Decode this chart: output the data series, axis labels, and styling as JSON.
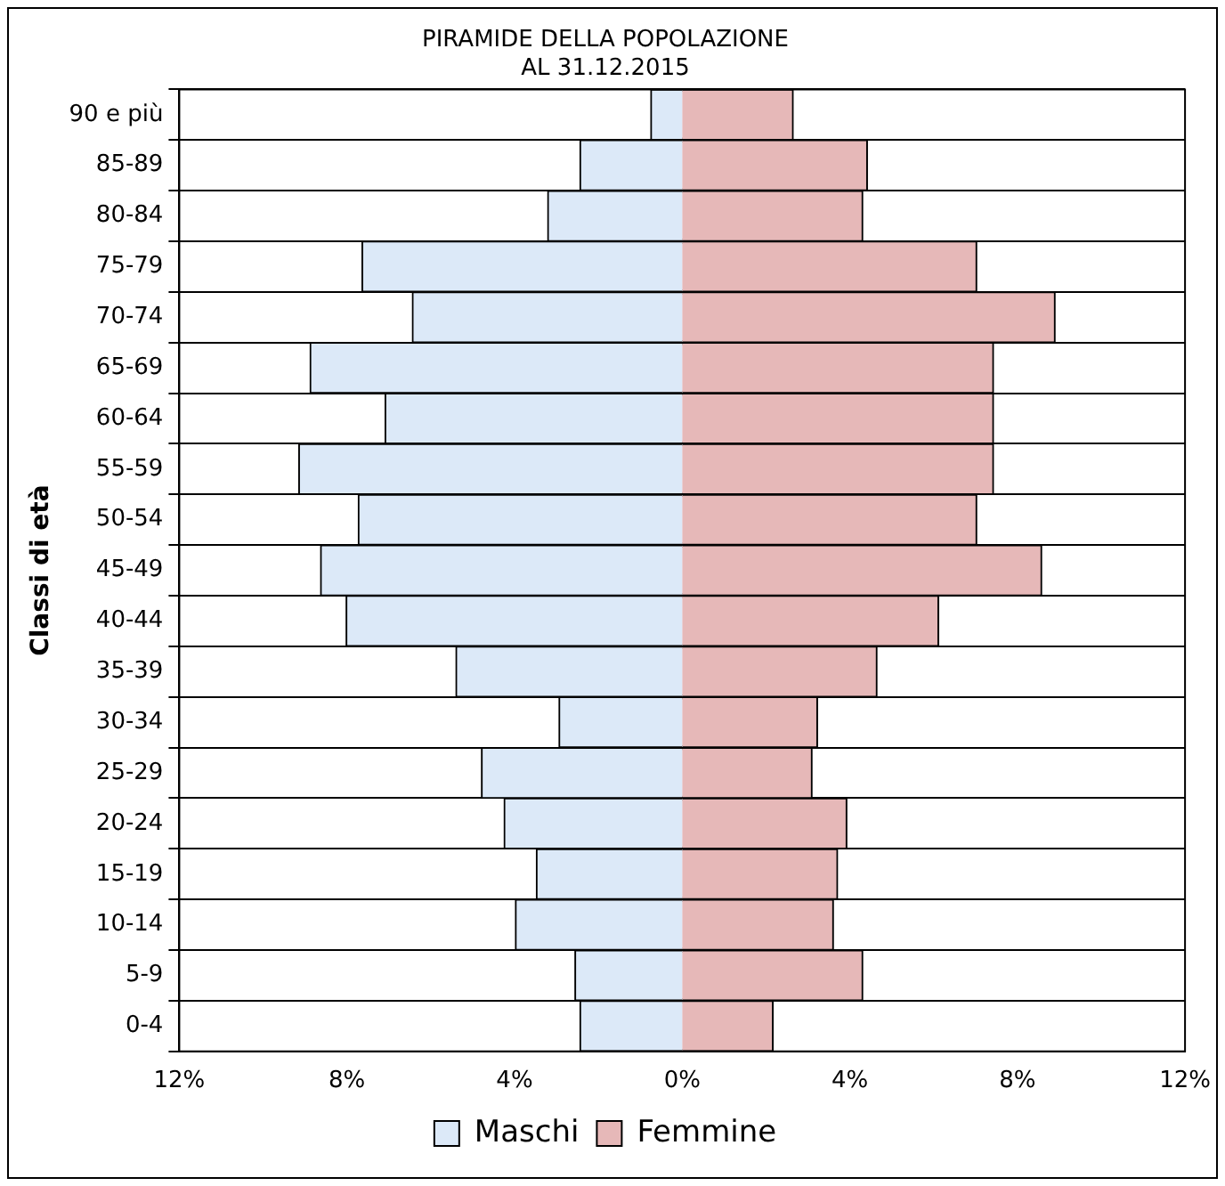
{
  "chart_data": {
    "type": "bar",
    "orientation": "horizontal",
    "stacked": true,
    "title": "PIRAMIDE DELLA POPOLAZIONE\nAL 31.12.2015",
    "ylabel": "Classi di età",
    "categories": [
      "90 e più",
      "85-89",
      "80-84",
      "75-79",
      "70-74",
      "65-69",
      "60-64",
      "55-59",
      "50-54",
      "45-49",
      "40-44",
      "35-39",
      "30-34",
      "25-29",
      "20-24",
      "15-19",
      "10-14",
      "5-9",
      "0-4"
    ],
    "series": [
      {
        "name": "Maschi",
        "color": "#dce9f8",
        "values": [
          -0.75,
          -2.44,
          -3.21,
          -7.64,
          -6.44,
          -8.88,
          -7.09,
          -9.15,
          -7.73,
          -8.63,
          -8.02,
          -5.4,
          -2.94,
          -4.79,
          -4.25,
          -3.48,
          -3.98,
          -2.56,
          -2.44
        ]
      },
      {
        "name": "Femmine",
        "color": "#e6b8b8",
        "values": [
          2.65,
          4.42,
          4.31,
          7.03,
          8.9,
          7.43,
          7.43,
          7.43,
          7.03,
          8.58,
          6.12,
          4.65,
          3.23,
          3.1,
          3.93,
          3.71,
          3.61,
          4.31,
          2.17
        ]
      }
    ],
    "xlim": [
      -12,
      12
    ],
    "xticks": [
      {
        "value": -12,
        "label": "12%"
      },
      {
        "value": -8,
        "label": "8%"
      },
      {
        "value": -4,
        "label": "4%"
      },
      {
        "value": 0,
        "label": "0%"
      },
      {
        "value": 4,
        "label": "4%"
      },
      {
        "value": 8,
        "label": "8%"
      },
      {
        "value": 12,
        "label": "12%"
      }
    ],
    "grid": "y",
    "legend": "bottom"
  }
}
